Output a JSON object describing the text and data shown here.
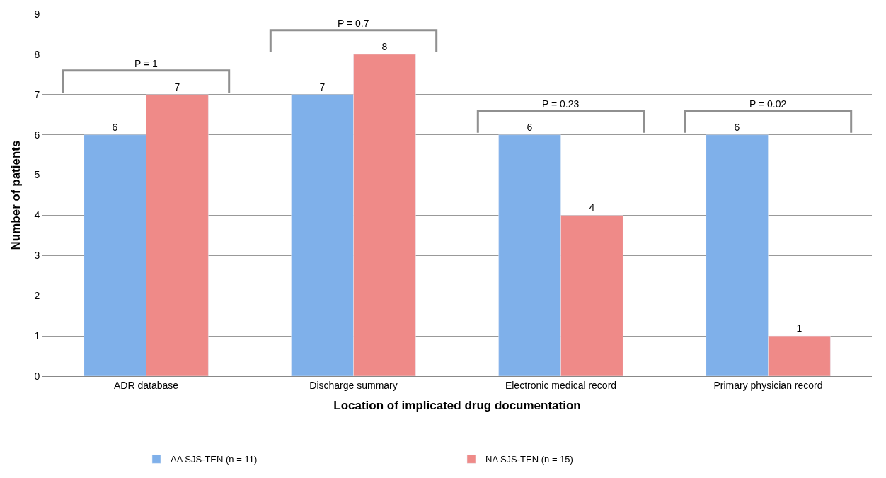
{
  "chart_data": {
    "type": "bar",
    "xlabel": "Location of implicated drug documentation",
    "ylabel": "Number of patients",
    "categories": [
      "ADR database",
      "Discharge summary",
      "Electronic medical record",
      "Primary physician record"
    ],
    "series": [
      {
        "name": "AA SJS-TEN (n = 11)",
        "color": "#7fb0ea",
        "values": [
          6,
          7,
          6,
          6
        ]
      },
      {
        "name": "NA SJS-TEN (n = 15)",
        "color": "#ef8a88",
        "values": [
          7,
          8,
          4,
          1
        ]
      }
    ],
    "ylim": [
      0,
      9
    ],
    "yticks": [
      0,
      1,
      2,
      3,
      4,
      5,
      6,
      7,
      8,
      9
    ],
    "grid": "y",
    "legend": "bottom",
    "data_labels": true,
    "annotations": [
      "P = 1",
      "P = 0.7",
      "P = 0.23",
      "P = 0.02"
    ]
  }
}
